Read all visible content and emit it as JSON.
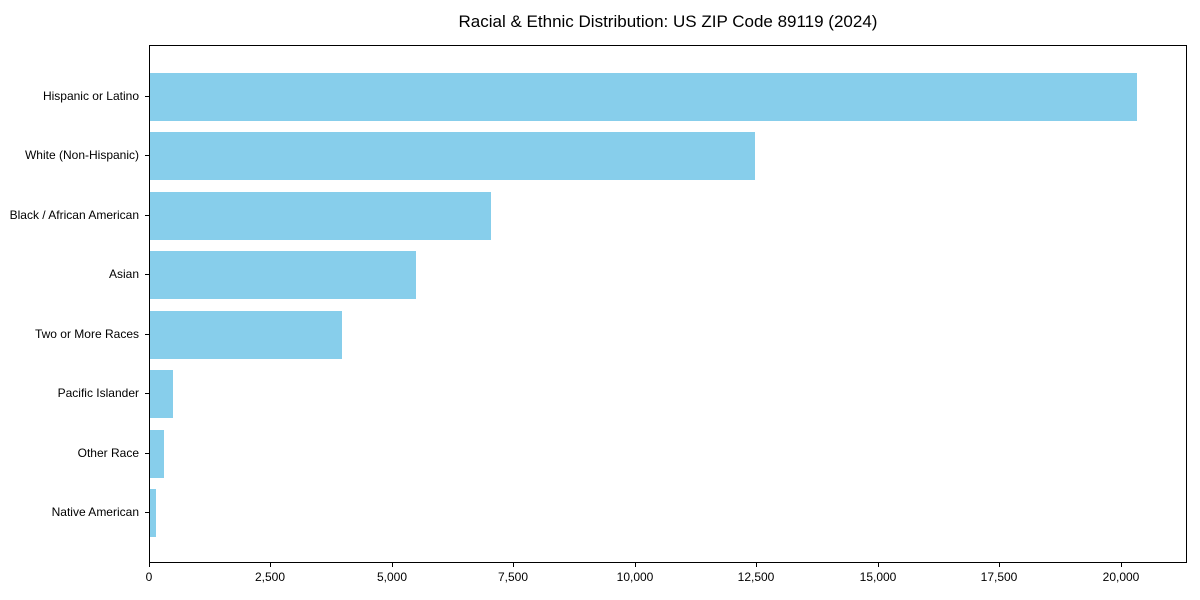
{
  "chart_data": {
    "type": "bar",
    "orientation": "horizontal",
    "title": "Racial & Ethnic Distribution: US ZIP Code 89119 (2024)",
    "categories": [
      "Hispanic or Latino",
      "White (Non-Hispanic)",
      "Black / African American",
      "Asian",
      "Two or More Races",
      "Pacific Islander",
      "Other Race",
      "Native American"
    ],
    "values": [
      20340,
      12480,
      7040,
      5480,
      3950,
      470,
      295,
      115
    ],
    "xlabel": "",
    "ylabel": "",
    "xlim": [
      0,
      21360
    ],
    "xticks": [
      0,
      2500,
      5000,
      7500,
      10000,
      12500,
      15000,
      17500,
      20000
    ],
    "xtick_labels": [
      "0",
      "2,500",
      "5,000",
      "7,500",
      "10,000",
      "12,500",
      "15,000",
      "17,500",
      "20,000"
    ],
    "bar_color": "#87CEEB",
    "axis_color": "#000000",
    "background_color": "#ffffff",
    "grid": false,
    "legend": null
  }
}
